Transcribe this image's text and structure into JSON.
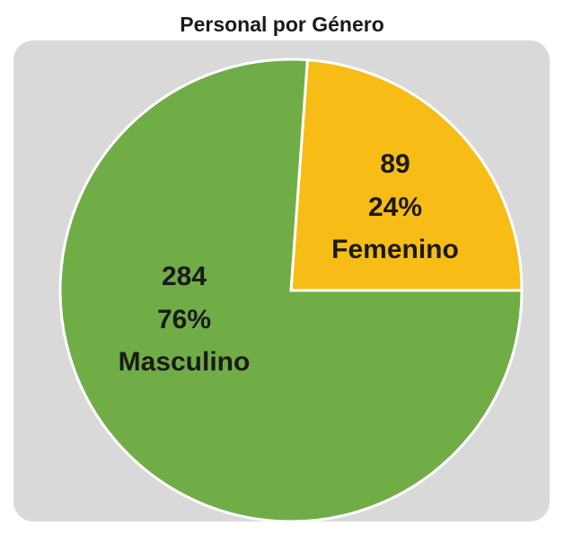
{
  "chart_data": {
    "type": "pie",
    "title": "Personal por Género",
    "categories": [
      "Femenino",
      "Masculino"
    ],
    "values": [
      89,
      284
    ],
    "percentages": [
      {
        "value": 24,
        "label": "24%"
      },
      {
        "value": 76,
        "label": "76%"
      }
    ],
    "colors": [
      "#f7bd16",
      "#70ad47"
    ]
  }
}
